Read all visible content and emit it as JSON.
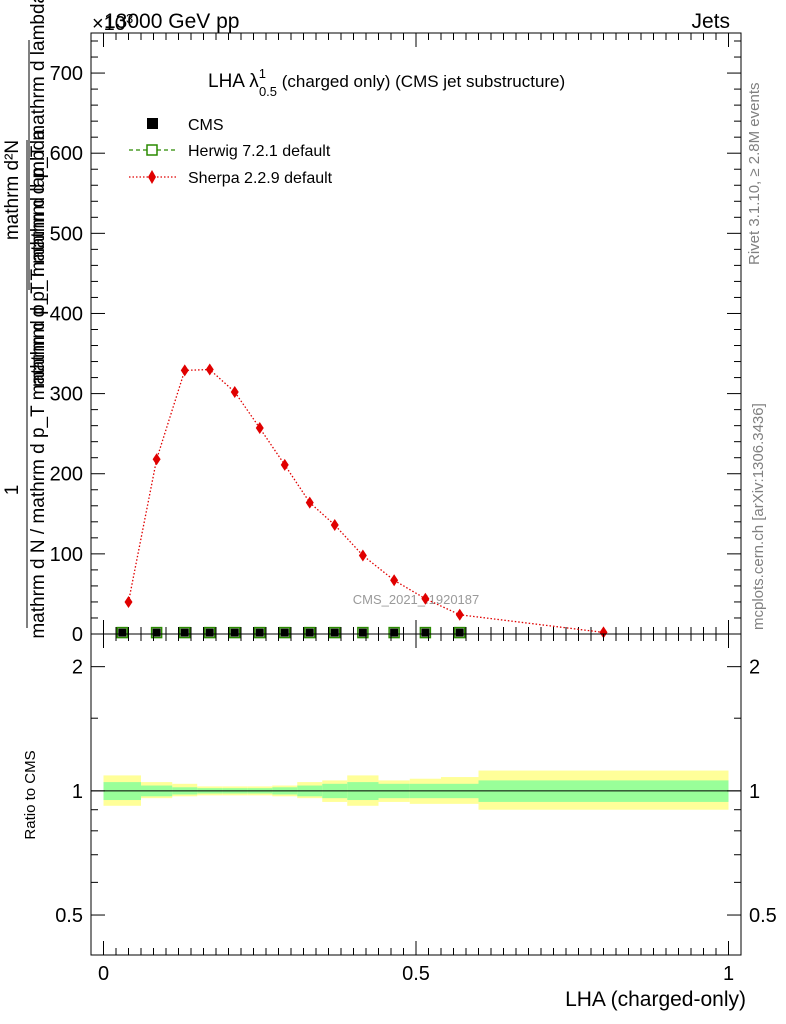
{
  "header": {
    "energy": "13000 GeV pp",
    "exponent_marker": "×10",
    "exponent_value": "3",
    "process": "Jets"
  },
  "side_text": {
    "rivet": "Rivet 3.1.10, ≥ 2.8M events",
    "mcplots": "mcplots.cern.ch [arXiv:1306.3436]"
  },
  "title": {
    "main": "LHA λ",
    "sup": "1",
    "sub": "0.5",
    "rest": " (charged only) (CMS jet substructure)"
  },
  "watermark": "CMS_2021_I1920187",
  "ylabel": {
    "numerator": "1",
    "denominator": "mathrm d N / mathrm d p_T mathrm d p_T mathrm d lambda",
    "numerator_right": "mathrm d²N",
    "denominator_right": "mathrm d p_T mathrm d p_T mathrm d lambda"
  },
  "colors": {
    "cms": "#000000",
    "herwig": "#2a8a00",
    "sherpa": "#e00000",
    "band_inner": "#99ff99",
    "band_outer": "#ffff99"
  },
  "chart_data": [
    {
      "type": "line",
      "panel": "main",
      "ylim": [
        0,
        750
      ],
      "xlim": [
        -0.02,
        1.02
      ],
      "y_ticks": [
        0,
        100,
        200,
        300,
        400,
        500,
        600,
        700
      ],
      "y_tick_labels": [
        "0",
        "100",
        "200",
        "300",
        "400",
        "500",
        "600",
        "700"
      ],
      "legend_position": "top-left",
      "series": [
        {
          "name": "CMS",
          "marker": "square",
          "x": [
            0.03,
            0.085,
            0.13,
            0.17,
            0.21,
            0.25,
            0.29,
            0.33,
            0.37,
            0.415,
            0.465,
            0.515,
            0.57
          ],
          "y": [
            0.5,
            0.5,
            0.5,
            0.5,
            0.5,
            0.5,
            0.5,
            0.5,
            0.5,
            0.5,
            0.5,
            0.5,
            0.5
          ]
        },
        {
          "name": "Herwig 7.2.1 default",
          "marker": "open-square",
          "x": [
            0.03,
            0.085,
            0.13,
            0.17,
            0.21,
            0.25,
            0.29,
            0.33,
            0.37,
            0.415,
            0.465,
            0.515,
            0.57
          ],
          "y": [
            0.5,
            0.5,
            0.5,
            0.5,
            0.5,
            0.5,
            0.5,
            0.5,
            0.5,
            0.5,
            0.5,
            0.5,
            0.5
          ]
        },
        {
          "name": "Sherpa 2.2.9 default",
          "marker": "diamond",
          "x": [
            0.04,
            0.085,
            0.13,
            0.17,
            0.21,
            0.25,
            0.29,
            0.33,
            0.37,
            0.415,
            0.465,
            0.515,
            0.57,
            0.8
          ],
          "y": [
            40,
            218,
            329,
            330,
            302,
            257,
            211,
            164,
            136,
            98,
            67,
            44,
            24,
            2
          ]
        }
      ]
    },
    {
      "type": "area",
      "panel": "ratio",
      "ylabel": "Ratio to CMS",
      "xlabel": "LHA (charged-only)",
      "ylim": [
        0.4,
        2.4
      ],
      "y_scale": "log",
      "xlim": [
        -0.02,
        1.02
      ],
      "y_ticks": [
        0.5,
        1,
        2
      ],
      "y_tick_labels": [
        "0.5",
        "1",
        "2"
      ],
      "x_ticks": [
        0,
        0.5,
        1
      ],
      "x_tick_labels": [
        "0",
        "0.5",
        "1"
      ],
      "bins": [
        {
          "x0": 0.0,
          "x1": 0.06,
          "inner": [
            0.95,
            1.05
          ],
          "outer": [
            0.92,
            1.09
          ]
        },
        {
          "x0": 0.06,
          "x1": 0.11,
          "inner": [
            0.97,
            1.03
          ],
          "outer": [
            0.96,
            1.05
          ]
        },
        {
          "x0": 0.11,
          "x1": 0.15,
          "inner": [
            0.98,
            1.02
          ],
          "outer": [
            0.97,
            1.04
          ]
        },
        {
          "x0": 0.15,
          "x1": 0.19,
          "inner": [
            0.985,
            1.015
          ],
          "outer": [
            0.975,
            1.025
          ]
        },
        {
          "x0": 0.19,
          "x1": 0.23,
          "inner": [
            0.985,
            1.015
          ],
          "outer": [
            0.975,
            1.025
          ]
        },
        {
          "x0": 0.23,
          "x1": 0.27,
          "inner": [
            0.985,
            1.015
          ],
          "outer": [
            0.975,
            1.025
          ]
        },
        {
          "x0": 0.27,
          "x1": 0.31,
          "inner": [
            0.98,
            1.02
          ],
          "outer": [
            0.97,
            1.03
          ]
        },
        {
          "x0": 0.31,
          "x1": 0.35,
          "inner": [
            0.97,
            1.03
          ],
          "outer": [
            0.96,
            1.05
          ]
        },
        {
          "x0": 0.35,
          "x1": 0.39,
          "inner": [
            0.96,
            1.04
          ],
          "outer": [
            0.94,
            1.06
          ]
        },
        {
          "x0": 0.39,
          "x1": 0.44,
          "inner": [
            0.95,
            1.05
          ],
          "outer": [
            0.92,
            1.09
          ]
        },
        {
          "x0": 0.44,
          "x1": 0.49,
          "inner": [
            0.96,
            1.04
          ],
          "outer": [
            0.94,
            1.06
          ]
        },
        {
          "x0": 0.49,
          "x1": 0.54,
          "inner": [
            0.96,
            1.04
          ],
          "outer": [
            0.93,
            1.07
          ]
        },
        {
          "x0": 0.54,
          "x1": 0.6,
          "inner": [
            0.96,
            1.04
          ],
          "outer": [
            0.93,
            1.08
          ]
        },
        {
          "x0": 0.6,
          "x1": 1.0,
          "inner": [
            0.94,
            1.06
          ],
          "outer": [
            0.9,
            1.12
          ]
        }
      ]
    }
  ]
}
